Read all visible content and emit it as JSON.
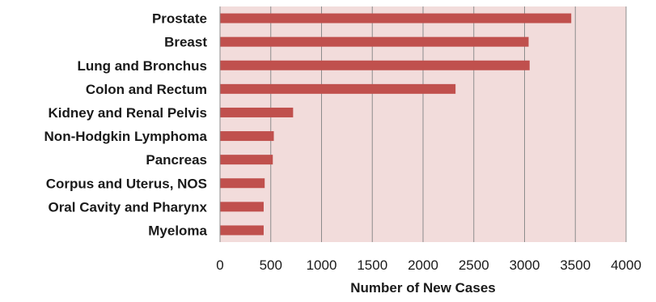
{
  "chart_data": {
    "type": "bar",
    "orientation": "horizontal",
    "categories": [
      "Prostate",
      "Breast",
      "Lung and Bronchus",
      "Colon and Rectum",
      "Kidney and Renal Pelvis",
      "Non-Hodgkin Lymphoma",
      "Pancreas",
      "Corpus and Uterus, NOS",
      "Oral Cavity and Pharynx",
      "Myeloma"
    ],
    "values": [
      3460,
      3040,
      3050,
      2320,
      720,
      530,
      520,
      440,
      430,
      430
    ],
    "xlabel": "Number of New Cases",
    "ylabel": "",
    "xlim": [
      0,
      4000
    ],
    "xticks": [
      "0",
      "500",
      "1000",
      "1500",
      "2000",
      "2500",
      "3000",
      "3500",
      "4000"
    ],
    "grid": "vertical",
    "colors": {
      "bar": "#c0504d",
      "plot_background": "#f2dcdb",
      "grid": "#8c8c8c"
    }
  }
}
